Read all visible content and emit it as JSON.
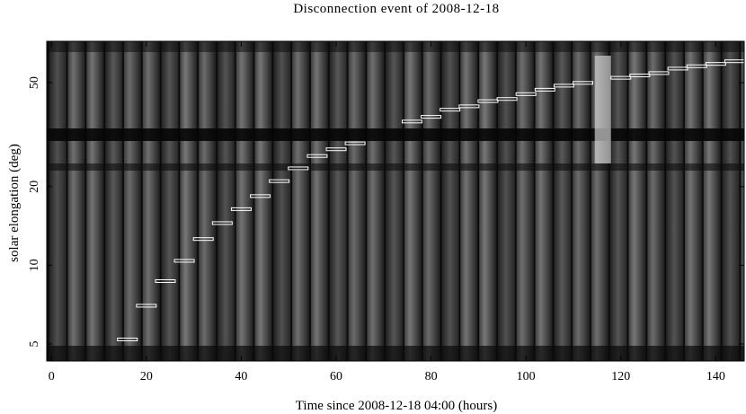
{
  "chart_data": {
    "type": "scatter",
    "title": "Disconnection event of 2008-12-18",
    "xlabel": "Time since 2008-12-18 04:00 (hours)",
    "ylabel": "solar elongation (deg)",
    "xlim": [
      -1,
      146
    ],
    "x_ticks": [
      0,
      20,
      40,
      60,
      80,
      100,
      120,
      140
    ],
    "y_ticks": [
      5,
      10,
      20,
      50
    ],
    "y_tick_values": [
      5,
      10,
      20,
      50
    ],
    "y_scale": "log",
    "ylim": [
      4.3,
      72
    ],
    "background": "J-map stack of grayscale difference images in vertical strips",
    "series": [
      {
        "name": "",
        "color": "#ffffff",
        "points": [
          {
            "x": 16,
            "y": 5.2
          },
          {
            "x": 20,
            "y": 7.0
          },
          {
            "x": 24,
            "y": 8.7
          },
          {
            "x": 28,
            "y": 10.4
          },
          {
            "x": 32,
            "y": 12.6
          },
          {
            "x": 36,
            "y": 14.5
          },
          {
            "x": 40,
            "y": 16.4
          },
          {
            "x": 44,
            "y": 18.4
          },
          {
            "x": 48,
            "y": 21.0
          },
          {
            "x": 52,
            "y": 23.5
          },
          {
            "x": 56,
            "y": 26.2
          },
          {
            "x": 60,
            "y": 27.8
          },
          {
            "x": 64,
            "y": 29.3
          },
          {
            "x": 76,
            "y": 35.5
          },
          {
            "x": 80,
            "y": 37.0
          },
          {
            "x": 84,
            "y": 39.4
          },
          {
            "x": 88,
            "y": 40.6
          },
          {
            "x": 92,
            "y": 42.5
          },
          {
            "x": 96,
            "y": 43.3
          },
          {
            "x": 100,
            "y": 45.2
          },
          {
            "x": 104,
            "y": 47.0
          },
          {
            "x": 108,
            "y": 48.7
          },
          {
            "x": 112,
            "y": 49.9
          },
          {
            "x": 120,
            "y": 52.2
          },
          {
            "x": 124,
            "y": 53.3
          },
          {
            "x": 128,
            "y": 54.4
          },
          {
            "x": 132,
            "y": 56.6
          },
          {
            "x": 136,
            "y": 57.8
          },
          {
            "x": 140,
            "y": 59.0
          },
          {
            "x": 144,
            "y": 60.4
          }
        ]
      }
    ]
  }
}
